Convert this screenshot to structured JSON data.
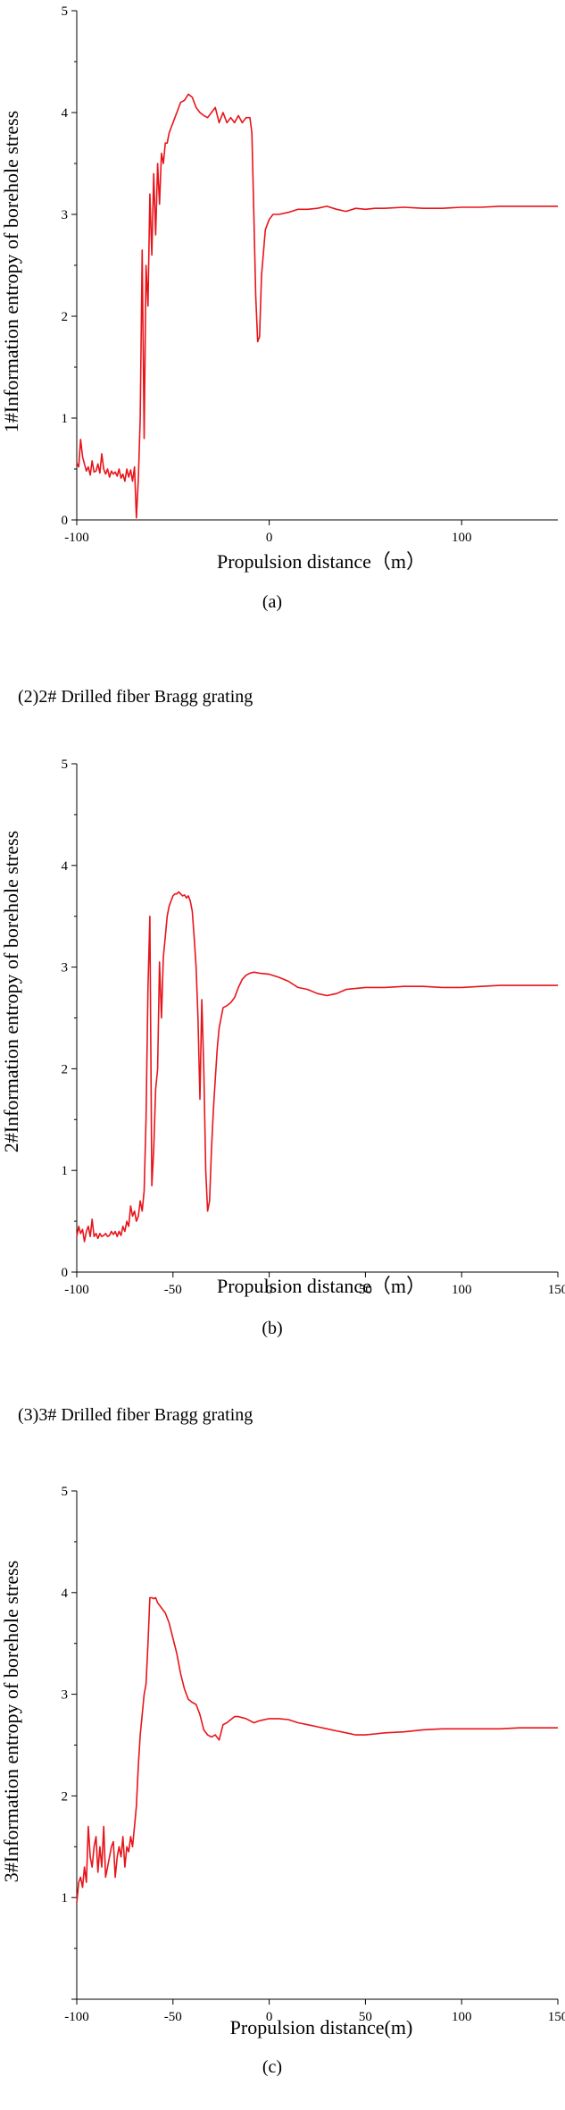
{
  "sections": [
    {
      "heading": ""
    },
    {
      "heading": "(2)2# Drilled fiber Bragg grating"
    },
    {
      "heading": "(3)3# Drilled fiber Bragg grating"
    }
  ],
  "colors": {
    "series": "#e8141a",
    "axis": "#000000"
  },
  "chart_data": [
    {
      "type": "line",
      "caption": "(a)",
      "xlabel": "Propulsion distance（m）",
      "ylabel": "1#Information entropy of borehole stress",
      "xlim": [
        -100,
        150
      ],
      "ylim": [
        0,
        5
      ],
      "xticks": [
        -100,
        0,
        100
      ],
      "yticks": [
        0,
        1,
        2,
        3,
        4,
        5
      ],
      "grid": false,
      "series": [
        {
          "x": [
            -100,
            -99,
            -98,
            -97,
            -96,
            -95,
            -94,
            -93,
            -92,
            -91,
            -90,
            -89,
            -88,
            -87,
            -86,
            -85,
            -84,
            -83,
            -82,
            -81,
            -80,
            -79,
            -78,
            -77,
            -76,
            -75,
            -74,
            -73,
            -72,
            -71,
            -70,
            -69,
            -68,
            -67,
            -66,
            -65,
            -64,
            -63,
            -62,
            -61,
            -60,
            -59,
            -58,
            -57,
            -56,
            -55,
            -54,
            -53,
            -52,
            -51,
            -50,
            -48,
            -46,
            -44,
            -42,
            -40,
            -38,
            -36,
            -34,
            -32,
            -30,
            -28,
            -26,
            -24,
            -22,
            -20,
            -18,
            -16,
            -14,
            -12,
            -10,
            -9,
            -8,
            -7,
            -6,
            -5,
            -4,
            -2,
            0,
            2,
            5,
            10,
            15,
            20,
            25,
            30,
            35,
            40,
            45,
            50,
            55,
            60,
            70,
            80,
            90,
            100,
            110,
            120,
            130,
            140,
            150
          ],
          "y": [
            0.56,
            0.52,
            0.79,
            0.62,
            0.55,
            0.48,
            0.52,
            0.44,
            0.58,
            0.47,
            0.48,
            0.55,
            0.46,
            0.65,
            0.5,
            0.45,
            0.5,
            0.42,
            0.48,
            0.45,
            0.47,
            0.43,
            0.5,
            0.41,
            0.45,
            0.38,
            0.5,
            0.42,
            0.49,
            0.38,
            0.52,
            0.02,
            0.4,
            1.0,
            2.65,
            0.8,
            2.5,
            2.1,
            3.2,
            2.6,
            3.4,
            2.8,
            3.5,
            3.1,
            3.6,
            3.5,
            3.7,
            3.7,
            3.8,
            3.85,
            3.9,
            4.0,
            4.1,
            4.12,
            4.18,
            4.15,
            4.05,
            4.0,
            3.97,
            3.95,
            4.0,
            4.05,
            3.9,
            4.0,
            3.9,
            3.95,
            3.9,
            3.97,
            3.9,
            3.95,
            3.95,
            3.8,
            3.0,
            2.2,
            1.75,
            1.8,
            2.4,
            2.85,
            2.95,
            3.0,
            3.0,
            3.02,
            3.05,
            3.05,
            3.06,
            3.08,
            3.05,
            3.03,
            3.06,
            3.05,
            3.06,
            3.06,
            3.07,
            3.06,
            3.06,
            3.07,
            3.07,
            3.08,
            3.08,
            3.08,
            3.08
          ]
        }
      ]
    },
    {
      "type": "line",
      "caption": "(b)",
      "xlabel": "Propulsion distance（m）",
      "ylabel": "2#Information entropy of borehole stress",
      "xlim": [
        -100,
        150
      ],
      "ylim": [
        0,
        5
      ],
      "xticks": [
        -100,
        -50,
        0,
        50,
        100,
        150
      ],
      "yticks": [
        0,
        1,
        2,
        3,
        4,
        5
      ],
      "grid": false,
      "series": [
        {
          "x": [
            -100,
            -99,
            -98,
            -97,
            -96,
            -95,
            -94,
            -93,
            -92,
            -91,
            -90,
            -89,
            -88,
            -87,
            -86,
            -85,
            -84,
            -83,
            -82,
            -81,
            -80,
            -79,
            -78,
            -77,
            -76,
            -75,
            -74,
            -73,
            -72,
            -71,
            -70,
            -69,
            -68,
            -67,
            -66,
            -65,
            -64,
            -63,
            -62,
            -61,
            -60,
            -59,
            -58,
            -57,
            -56,
            -55,
            -54,
            -53,
            -52,
            -51,
            -50,
            -49,
            -48,
            -47,
            -46,
            -45,
            -44,
            -43,
            -42,
            -41,
            -40,
            -39,
            -38,
            -37,
            -36,
            -35,
            -34,
            -33,
            -32,
            -31,
            -30,
            -29,
            -28,
            -27,
            -26,
            -25,
            -24,
            -22,
            -20,
            -18,
            -16,
            -14,
            -12,
            -10,
            -8,
            -5,
            0,
            5,
            10,
            15,
            20,
            25,
            30,
            35,
            40,
            50,
            60,
            70,
            80,
            90,
            100,
            110,
            120,
            130,
            140,
            150
          ],
          "y": [
            0.35,
            0.45,
            0.38,
            0.42,
            0.3,
            0.4,
            0.45,
            0.35,
            0.52,
            0.35,
            0.38,
            0.33,
            0.38,
            0.35,
            0.36,
            0.38,
            0.35,
            0.36,
            0.4,
            0.37,
            0.4,
            0.35,
            0.4,
            0.36,
            0.45,
            0.4,
            0.5,
            0.45,
            0.65,
            0.55,
            0.6,
            0.5,
            0.55,
            0.7,
            0.6,
            0.8,
            1.5,
            2.8,
            3.5,
            0.85,
            1.2,
            1.8,
            2.0,
            3.05,
            2.5,
            3.1,
            3.3,
            3.5,
            3.6,
            3.65,
            3.7,
            3.72,
            3.72,
            3.74,
            3.72,
            3.7,
            3.71,
            3.68,
            3.7,
            3.65,
            3.55,
            3.3,
            3.0,
            2.5,
            1.7,
            2.68,
            2.0,
            1.0,
            0.6,
            0.7,
            1.2,
            1.6,
            1.9,
            2.2,
            2.4,
            2.5,
            2.6,
            2.62,
            2.65,
            2.7,
            2.8,
            2.88,
            2.92,
            2.94,
            2.95,
            2.94,
            2.93,
            2.9,
            2.86,
            2.8,
            2.78,
            2.74,
            2.72,
            2.74,
            2.78,
            2.8,
            2.8,
            2.81,
            2.81,
            2.8,
            2.8,
            2.81,
            2.82,
            2.82,
            2.82,
            2.82
          ]
        }
      ]
    },
    {
      "type": "line",
      "caption": "(c)",
      "xlabel": "Propulsion distance(m)",
      "ylabel": "3#Information entropy of borehole stress",
      "xlim": [
        -100,
        150
      ],
      "ylim": [
        0,
        5
      ],
      "xticks": [
        -100,
        -50,
        0,
        50,
        100,
        150
      ],
      "yticks": [
        1,
        2,
        3,
        4,
        5
      ],
      "grid": false,
      "series": [
        {
          "x": [
            -100,
            -99,
            -98,
            -97,
            -96,
            -95,
            -94,
            -93,
            -92,
            -91,
            -90,
            -89,
            -88,
            -87,
            -86,
            -85,
            -84,
            -83,
            -82,
            -81,
            -80,
            -79,
            -78,
            -77,
            -76,
            -75,
            -74,
            -73,
            -72,
            -71,
            -70,
            -69,
            -68,
            -67,
            -66,
            -65,
            -64,
            -63,
            -62,
            -61,
            -60,
            -59,
            -58,
            -56,
            -54,
            -52,
            -50,
            -48,
            -46,
            -44,
            -42,
            -40,
            -38,
            -36,
            -34,
            -32,
            -30,
            -28,
            -26,
            -24,
            -22,
            -20,
            -18,
            -16,
            -14,
            -12,
            -10,
            -8,
            -5,
            0,
            5,
            10,
            15,
            20,
            25,
            30,
            35,
            40,
            45,
            50,
            55,
            60,
            70,
            80,
            90,
            100,
            110,
            120,
            130,
            140,
            150
          ],
          "y": [
            0.95,
            1.15,
            1.2,
            1.1,
            1.3,
            1.15,
            1.7,
            1.4,
            1.3,
            1.5,
            1.6,
            1.25,
            1.5,
            1.3,
            1.7,
            1.2,
            1.3,
            1.4,
            1.5,
            1.55,
            1.2,
            1.4,
            1.5,
            1.4,
            1.6,
            1.3,
            1.5,
            1.45,
            1.6,
            1.5,
            1.7,
            1.9,
            2.3,
            2.6,
            2.8,
            3.0,
            3.1,
            3.5,
            3.95,
            3.95,
            3.94,
            3.95,
            3.9,
            3.85,
            3.8,
            3.7,
            3.55,
            3.4,
            3.2,
            3.05,
            2.95,
            2.92,
            2.9,
            2.8,
            2.65,
            2.6,
            2.58,
            2.6,
            2.55,
            2.7,
            2.72,
            2.75,
            2.78,
            2.78,
            2.77,
            2.76,
            2.74,
            2.72,
            2.74,
            2.76,
            2.76,
            2.75,
            2.72,
            2.7,
            2.68,
            2.66,
            2.64,
            2.62,
            2.6,
            2.6,
            2.61,
            2.62,
            2.63,
            2.65,
            2.66,
            2.66,
            2.66,
            2.66,
            2.67,
            2.67,
            2.67
          ]
        }
      ]
    }
  ]
}
